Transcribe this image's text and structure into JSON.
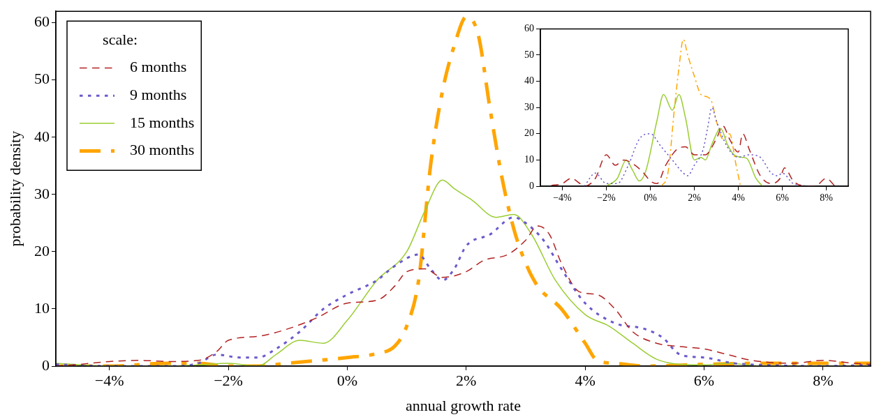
{
  "chart_data": [
    {
      "type": "line",
      "xlabel": "annual growth rate",
      "ylabel": "probability density",
      "legend_title": "scale:",
      "legend": "top left",
      "xlim": [
        -4.9,
        8.8
      ],
      "ylim": [
        0,
        62
      ],
      "xticks": [
        {
          "value": -4,
          "label": "−4%"
        },
        {
          "value": -2,
          "label": "−2%"
        },
        {
          "value": 0,
          "label": "0%"
        },
        {
          "value": 2,
          "label": "2%"
        },
        {
          "value": 4,
          "label": "4%"
        },
        {
          "value": 6,
          "label": "6%"
        },
        {
          "value": 8,
          "label": "8%"
        }
      ],
      "yticks": [
        0,
        10,
        20,
        30,
        40,
        50,
        60
      ],
      "series": [
        {
          "name": "6 months",
          "color": "#b22222",
          "line_style": "dashed",
          "x": [
            -4.9,
            -4.5,
            -4,
            -3.5,
            -3,
            -2.5,
            -2.2,
            -2,
            -1.5,
            -1,
            -0.5,
            0,
            0.5,
            0.8,
            1,
            1.3,
            1.6,
            2,
            2.3,
            2.7,
            3,
            3.2,
            3.4,
            3.6,
            3.9,
            4.2,
            4.5,
            4.8,
            5.2,
            5.5,
            6,
            6.4,
            6.8,
            7.5,
            8,
            8.5,
            8.8
          ],
          "values": [
            0,
            0.3,
            0.8,
            1,
            0.8,
            1,
            2.5,
            4.5,
            5.2,
            6.5,
            8.5,
            11,
            11.5,
            14,
            16.5,
            17,
            15.5,
            16.5,
            18.5,
            19.5,
            22,
            24.5,
            23,
            18,
            13,
            12.5,
            10,
            6,
            4,
            3.5,
            3,
            2,
            1,
            0.5,
            1,
            0.5,
            0.3
          ]
        },
        {
          "name": "9 months",
          "color": "#6a5acd",
          "line_style": "dotted",
          "x": [
            -4.9,
            -4,
            -3,
            -2.5,
            -2.2,
            -1.8,
            -1.5,
            -1.2,
            -0.8,
            -0.4,
            0,
            0.5,
            0.8,
            1.2,
            1.4,
            1.6,
            1.8,
            2,
            2.4,
            2.8,
            3,
            3.3,
            3.6,
            4,
            4.5,
            5,
            5.3,
            5.6,
            6,
            6.5,
            7,
            8,
            8.8
          ],
          "values": [
            0.3,
            0,
            0,
            0.5,
            2,
            1.5,
            1.5,
            3,
            6,
            10,
            12.5,
            15,
            17.5,
            19.5,
            17,
            15,
            17,
            21,
            23,
            26,
            25,
            22,
            17,
            11,
            7.5,
            6.5,
            5,
            2,
            1.5,
            0.5,
            0.2,
            0,
            0.2
          ]
        },
        {
          "name": "15 months",
          "color": "#9acd32",
          "line_style": "solid",
          "x": [
            -4.9,
            -4,
            -3,
            -2.5,
            -2,
            -1.5,
            -1.2,
            -0.8,
            -0.4,
            0,
            0.5,
            1,
            1.3,
            1.6,
            1.8,
            2.1,
            2.5,
            2.8,
            3.1,
            3.5,
            4,
            4.4,
            4.8,
            5.2,
            5.6,
            6,
            6.4,
            7,
            8.8
          ],
          "values": [
            0.5,
            0,
            0,
            0.2,
            0.5,
            0,
            2,
            4.5,
            4,
            8,
            15,
            20,
            27,
            32.5,
            31,
            29,
            26,
            26.5,
            23,
            15,
            9,
            7,
            4,
            1.2,
            0.3,
            0.2,
            0.5,
            0,
            0
          ]
        },
        {
          "name": "30 months",
          "color": "#ffa500",
          "line_style": "dashdot",
          "x": [
            -4.9,
            -4,
            -3,
            -2.5,
            -2,
            -1.5,
            -1,
            0,
            0.5,
            0.8,
            1,
            1.2,
            1.4,
            1.6,
            1.8,
            2,
            2.2,
            2.4,
            2.6,
            2.8,
            3,
            3.2,
            3.6,
            4,
            4.2,
            4.5,
            5,
            6,
            7,
            8,
            8.8
          ],
          "values": [
            0,
            0,
            0.5,
            0.5,
            0,
            0,
            0.5,
            1.5,
            2.2,
            3.5,
            7,
            15,
            35,
            48,
            56,
            61,
            58,
            45,
            33,
            24,
            18,
            14,
            10,
            4,
            1,
            0.5,
            0,
            0.3,
            0.5,
            0.5,
            0.5
          ]
        }
      ]
    },
    {
      "type": "line",
      "xlim": [
        -5,
        9
      ],
      "ylim": [
        0,
        60
      ],
      "xticks": [
        {
          "value": -4,
          "label": "−4%"
        },
        {
          "value": -2,
          "label": "−2%"
        },
        {
          "value": 0,
          "label": "0%"
        },
        {
          "value": 2,
          "label": "2%"
        },
        {
          "value": 4,
          "label": "4%"
        },
        {
          "value": 6,
          "label": "6%"
        },
        {
          "value": 8,
          "label": "8%"
        }
      ],
      "yticks": [
        0,
        10,
        20,
        30,
        40,
        50,
        60
      ],
      "series": [
        {
          "color": "#b22222",
          "line_style": "dashed",
          "x": [
            -4.5,
            -4,
            -3.6,
            -3.2,
            -3,
            -2.5,
            -2,
            -1.6,
            -1.2,
            -0.7,
            -0.3,
            0,
            0.3,
            0.7,
            1.2,
            1.6,
            2,
            2.5,
            3,
            3.3,
            3.6,
            4,
            4.2,
            4.5,
            5,
            5.5,
            5.9,
            6.1,
            6.5,
            7,
            7.5,
            8,
            8.4
          ],
          "values": [
            0.3,
            1,
            3,
            1,
            0,
            3,
            12,
            8,
            10,
            8,
            5,
            2,
            1,
            8,
            14,
            15,
            12,
            12,
            18,
            23,
            18,
            13,
            20,
            14,
            4,
            1,
            3,
            7,
            2,
            0,
            0,
            3,
            0
          ]
        },
        {
          "color": "#6a5acd",
          "line_style": "dotted",
          "x": [
            -3,
            -2.5,
            -2,
            -1.5,
            -1,
            -0.5,
            0,
            0.5,
            1,
            1.5,
            1.7,
            2,
            2.4,
            2.6,
            2.8,
            3,
            3.5,
            4,
            4.5,
            5,
            5.5,
            5.8,
            6,
            6.5,
            7
          ],
          "values": [
            0,
            5,
            1,
            1,
            8,
            18,
            20,
            15,
            10,
            5,
            4,
            8,
            14,
            22,
            30,
            25,
            15,
            11,
            12,
            11,
            5,
            4,
            5,
            1,
            0.3
          ]
        },
        {
          "color": "#9acd32",
          "line_style": "solid",
          "x": [
            -2,
            -1.5,
            -1.1,
            -0.8,
            -0.5,
            -0.2,
            0.3,
            0.6,
            1,
            1.3,
            1.6,
            2,
            2.3,
            2.5,
            2.8,
            3.2,
            3.5,
            3.8,
            4.2,
            4.4,
            4.8,
            5.1
          ],
          "values": [
            0,
            3,
            10,
            6,
            2,
            6,
            25,
            35,
            29,
            35,
            26,
            10,
            11,
            10,
            16,
            22,
            16,
            12,
            11,
            10.5,
            3,
            0
          ]
        },
        {
          "color": "#ffa500",
          "line_style": "dashdot",
          "x": [
            0.5,
            0.8,
            1.1,
            1.3,
            1.5,
            1.7,
            2,
            2.3,
            2.6,
            2.8,
            3,
            3.3,
            3.6,
            3.9,
            4.1
          ],
          "values": [
            0,
            5,
            30,
            45,
            56,
            50,
            42,
            35,
            34,
            32,
            25,
            18,
            20,
            8,
            0
          ]
        }
      ]
    }
  ]
}
